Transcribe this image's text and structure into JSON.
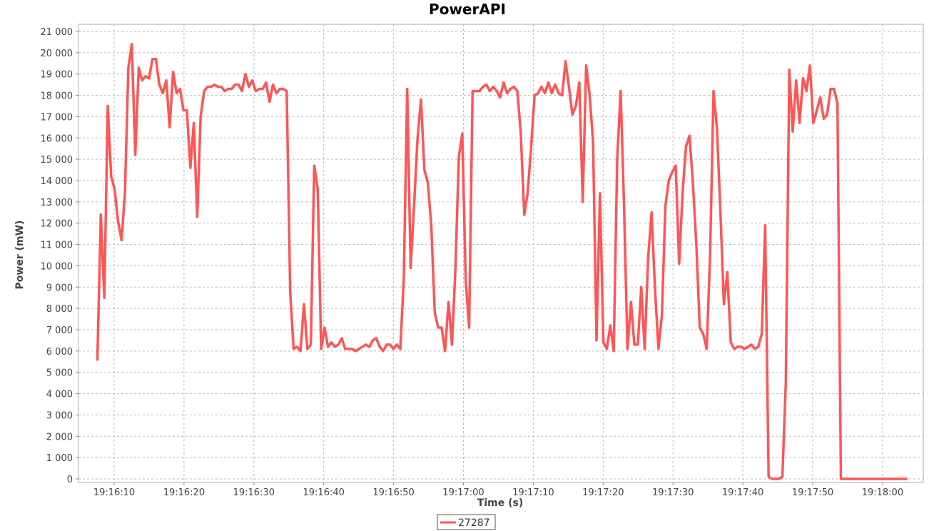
{
  "chart_data": {
    "type": "line",
    "title": "PowerAPI",
    "xlabel": "Time (s)",
    "ylabel": "Power (mW)",
    "x_start": "19:16:07.6",
    "ylim": [
      0,
      21000
    ],
    "yticks": [
      0,
      1000,
      2000,
      3000,
      4000,
      5000,
      6000,
      7000,
      8000,
      9000,
      10000,
      11000,
      12000,
      13000,
      14000,
      15000,
      16000,
      17000,
      18000,
      19000,
      20000,
      21000
    ],
    "ytick_labels": [
      "0",
      "1 000",
      "2 000",
      "3 000",
      "4 000",
      "5 000",
      "6 000",
      "7 000",
      "8 000",
      "9 000",
      "10 000",
      "11 000",
      "12 000",
      "13 000",
      "14 000",
      "15 000",
      "16 000",
      "17 000",
      "18 000",
      "19 000",
      "20 000",
      "21 000"
    ],
    "xtick_labels": [
      "19:16:10",
      "19:16:20",
      "19:16:30",
      "19:16:40",
      "19:16:50",
      "19:17:00",
      "19:17:10",
      "19:17:20",
      "19:17:30",
      "19:17:40",
      "19:17:50",
      "19:18:00"
    ],
    "grid": true,
    "legend_position": "bottom",
    "series": [
      {
        "name": "27287",
        "color": "#ff5555",
        "values": [
          5600,
          12400,
          8500,
          17500,
          14200,
          13600,
          12100,
          11200,
          13400,
          19300,
          20400,
          15200,
          19300,
          18700,
          18900,
          18800,
          19700,
          19700,
          18500,
          18100,
          18700,
          16500,
          19100,
          18100,
          18300,
          17300,
          17300,
          14600,
          16700,
          12300,
          17000,
          18200,
          18400,
          18400,
          18500,
          18400,
          18400,
          18200,
          18300,
          18300,
          18500,
          18500,
          18200,
          19000,
          18400,
          18700,
          18200,
          18300,
          18300,
          18600,
          17700,
          18500,
          18100,
          18300,
          18300,
          18200,
          8800,
          6100,
          6200,
          6000,
          8200,
          6100,
          6300,
          14700,
          13600,
          6100,
          7100,
          6200,
          6400,
          6200,
          6300,
          6600,
          6100,
          6100,
          6100,
          6000,
          6100,
          6200,
          6300,
          6200,
          6500,
          6600,
          6200,
          6000,
          6300,
          6300,
          6100,
          6300,
          6100,
          9400,
          18300,
          9900,
          12800,
          16000,
          17800,
          14500,
          13900,
          11900,
          7800,
          7100,
          7100,
          6000,
          8300,
          6300,
          9800,
          15100,
          16200,
          9300,
          7100,
          18200,
          18200,
          18200,
          18400,
          18500,
          18200,
          18400,
          18200,
          17900,
          18600,
          18100,
          18300,
          18400,
          18200,
          16200,
          12400,
          13400,
          15600,
          18000,
          18100,
          18400,
          18100,
          18600,
          18100,
          18500,
          18100,
          18000,
          19600,
          18400,
          17100,
          17500,
          18600,
          13000,
          19400,
          18000,
          15800,
          6500,
          13400,
          6400,
          6100,
          7200,
          6000,
          15000,
          18200,
          12800,
          6100,
          8300,
          6300,
          6300,
          9000,
          6100,
          10400,
          12500,
          8900,
          6100,
          7700,
          12800,
          14000,
          14400,
          14700,
          10100,
          13400,
          15600,
          16100,
          13900,
          11000,
          7100,
          6800,
          6100,
          10500,
          18200,
          16400,
          12500,
          8200,
          9700,
          6400,
          6100,
          6200,
          6200,
          6100,
          6200,
          6300,
          6100,
          6200,
          6800,
          11900,
          100,
          0,
          0,
          0,
          100,
          4500,
          19200,
          16300,
          18700,
          16700,
          18800,
          18200,
          19400,
          16700,
          17300,
          17900,
          16900,
          17100,
          18300,
          18300,
          17600,
          0,
          0,
          0,
          0,
          0,
          0,
          0,
          0,
          0,
          0,
          0,
          0,
          0,
          0,
          0,
          0,
          0,
          0,
          0,
          0
        ]
      }
    ]
  }
}
